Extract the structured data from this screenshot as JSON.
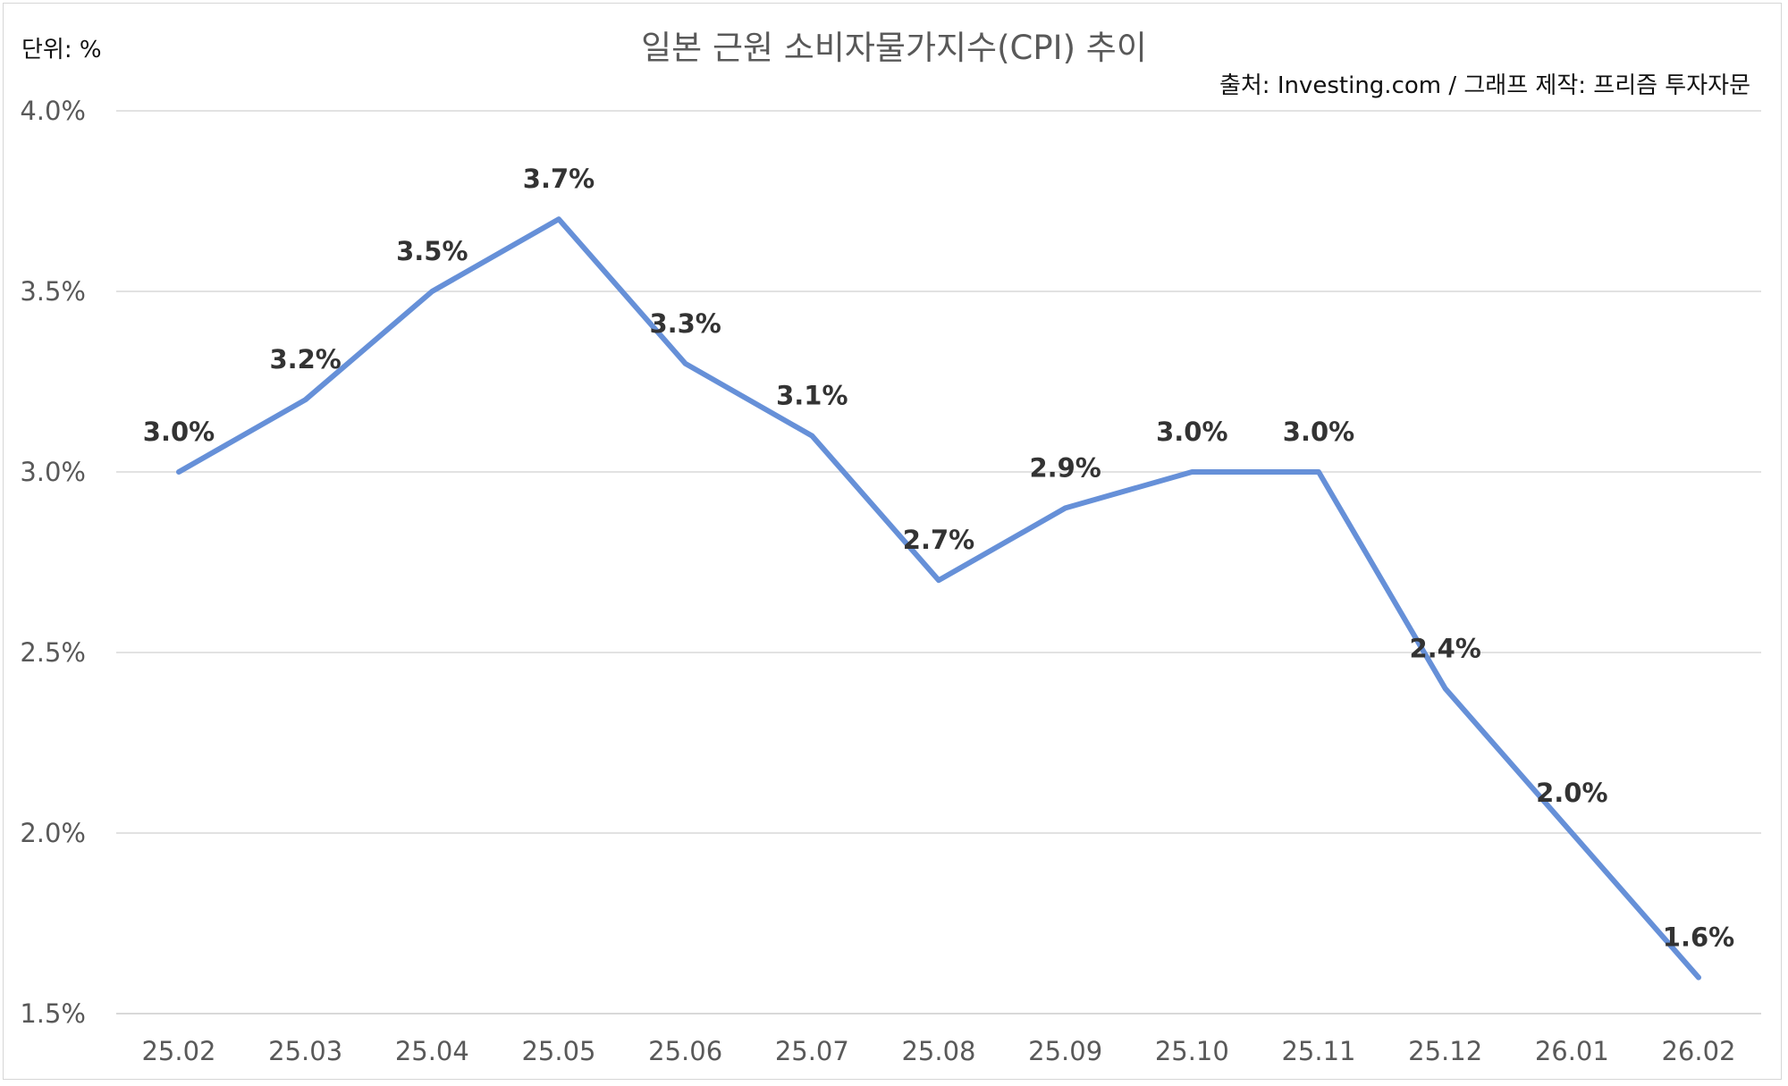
{
  "chart_data": {
    "type": "line",
    "title": "일본 근원 소비자물가지수(CPI) 추이",
    "unit_label": "단위: %",
    "source_label": "출처: Investing.com / 그래프 제작: 프리즘 투자자문",
    "categories": [
      "25.02",
      "25.03",
      "25.04",
      "25.05",
      "25.06",
      "25.07",
      "25.08",
      "25.09",
      "25.10",
      "25.11",
      "25.12",
      "26.01",
      "26.02"
    ],
    "series": [
      {
        "values": [
          3.0,
          3.2,
          3.5,
          3.7,
          3.3,
          3.1,
          2.7,
          2.9,
          3.0,
          3.0,
          2.4,
          2.0,
          1.6
        ],
        "data_labels": [
          "3.0%",
          "3.2%",
          "3.5%",
          "3.7%",
          "3.3%",
          "3.1%",
          "2.7%",
          "2.9%",
          "3.0%",
          "3.0%",
          "2.4%",
          "2.0%",
          "1.6%"
        ],
        "color": "#6690d8"
      }
    ],
    "ylim": [
      1.5,
      4.0
    ],
    "y_ticks": [
      1.5,
      2.0,
      2.5,
      3.0,
      3.5,
      4.0
    ],
    "y_tick_labels": [
      "1.5%",
      "2.0%",
      "2.5%",
      "3.0%",
      "3.5%",
      "4.0%"
    ],
    "grid": true,
    "legend": "none",
    "colors": {
      "series": "#6690d8",
      "grid": "#d9d9d9",
      "title": "#595959",
      "label": "#333333"
    }
  }
}
